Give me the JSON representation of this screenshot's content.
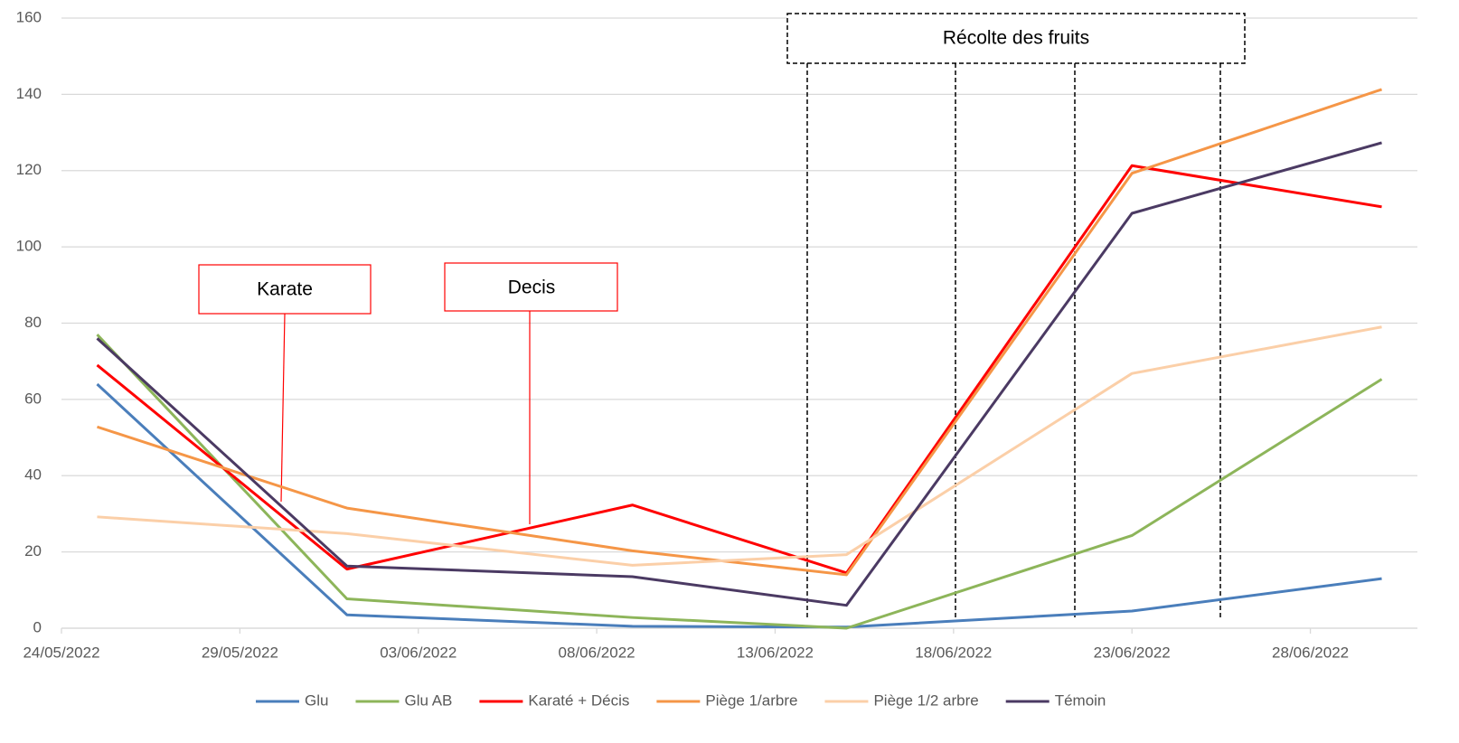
{
  "chart_data": {
    "type": "line",
    "x": [
      "2022-05-25",
      "2022-06-01",
      "2022-06-09",
      "2022-06-15",
      "2022-06-23",
      "2022-06-30"
    ],
    "series": [
      {
        "name": "Glu",
        "color": "#4a7ebb",
        "values": [
          64,
          3.5,
          0.5,
          0.3,
          4.5,
          13
        ]
      },
      {
        "name": "Glu AB",
        "color": "#8db55a",
        "values": [
          77,
          7.7,
          2.8,
          0,
          24.3,
          65.3
        ]
      },
      {
        "name": "Karaté + Décis",
        "color": "#ff0000",
        "values": [
          69,
          15.5,
          32.3,
          14.5,
          121.3,
          110.5
        ]
      },
      {
        "name": "Piège 1/arbre",
        "color": "#f59647",
        "values": [
          52.8,
          31.5,
          20.3,
          14,
          119.3,
          141.3
        ]
      },
      {
        "name": "Piège 1/2 arbre",
        "color": "#fbcfa8",
        "values": [
          29.2,
          24.8,
          16.5,
          19.3,
          66.8,
          79
        ]
      },
      {
        "name": "Témoin",
        "color": "#4b3a63",
        "values": [
          76,
          16.3,
          13.5,
          6,
          108.8,
          127.3
        ]
      }
    ],
    "xlim": [
      "2022-05-24",
      "2022-07-01"
    ],
    "xticks": [
      {
        "value": "2022-05-24",
        "label": "24/05/2022"
      },
      {
        "value": "2022-05-29",
        "label": "29/05/2022"
      },
      {
        "value": "2022-06-03",
        "label": "03/06/2022"
      },
      {
        "value": "2022-06-08",
        "label": "08/06/2022"
      },
      {
        "value": "2022-06-13",
        "label": "13/06/2022"
      },
      {
        "value": "2022-06-18",
        "label": "18/06/2022"
      },
      {
        "value": "2022-06-23",
        "label": "23/06/2022"
      },
      {
        "value": "2022-06-28",
        "label": "28/06/2022"
      }
    ],
    "ylim": [
      0,
      160
    ],
    "yticks": [
      0,
      20,
      40,
      60,
      80,
      100,
      120,
      140,
      160
    ],
    "grid": true,
    "legend": "bottom",
    "annotations": [
      {
        "text": "Récolte des fruits"
      },
      {
        "text": "Karate"
      },
      {
        "text": "Decis"
      }
    ]
  }
}
